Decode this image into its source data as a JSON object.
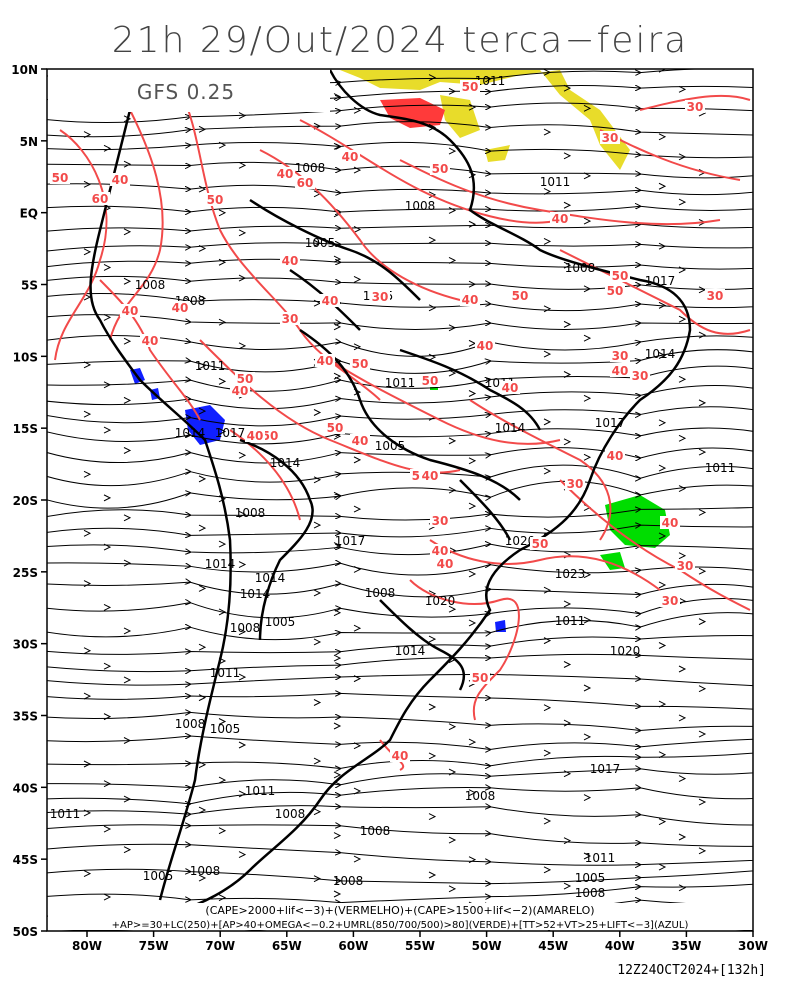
{
  "title": "21h 29/Out/2024 terca−feira",
  "model_label": "GFS 0.25",
  "legend": {
    "line1": "(CAPE>2000+lif<−3)+(VERMELHO)+(CAPE>1500+lif<−2)(AMARELO)",
    "line2": "+AP>=30+LC(250)+[AP>40+OMEGA<−0.2+UMRL(850/700/500)>80](VERDE)+[TT>52+VT>25+LIFT<−3](AZUL)"
  },
  "run_stamp": "12Z24OCT2024+[132h]",
  "lat_labels": [
    "10N",
    "5N",
    "EQ",
    "5S",
    "10S",
    "15S",
    "20S",
    "25S",
    "30S",
    "35S",
    "40S",
    "45S",
    "50S"
  ],
  "lon_labels": [
    "80W",
    "75W",
    "70W",
    "65W",
    "60W",
    "55W",
    "50W",
    "45W",
    "40W",
    "35W",
    "30W"
  ],
  "pressure_labels": [
    "1011",
    "1008",
    "1008",
    "1011",
    "1005",
    "1008",
    "1008",
    "1005",
    "1008",
    "1017",
    "1014",
    "1011",
    "1011",
    "1011",
    "1014",
    "1017",
    "1014",
    "1017",
    "1011",
    "1014",
    "1005",
    "1008",
    "1017",
    "1020",
    "1023",
    "1014",
    "1014",
    "1014",
    "1008",
    "1020",
    "1005",
    "1008",
    "1014",
    "1011",
    "1020",
    "1011",
    "1008",
    "1005",
    "1017",
    "1011",
    "1008"
  ],
  "contour_labels": [
    "50",
    "50",
    "40",
    "60",
    "50",
    "40",
    "60",
    "40",
    "50",
    "40",
    "50",
    "50",
    "40",
    "40",
    "30",
    "40",
    "50",
    "40",
    "40",
    "40",
    "30",
    "40",
    "50",
    "30",
    "40",
    "30",
    "40",
    "40",
    "30",
    "50",
    "40",
    "50",
    "50",
    "50",
    "40",
    "40",
    "50",
    "40",
    "30",
    "40",
    "40",
    "40",
    "30",
    "50",
    "40",
    "30",
    "30",
    "50",
    "40",
    "30",
    "30"
  ],
  "colors": {
    "cape_2000_red": "#ff3a3a",
    "cape_1500_yellow": "#e8dc2a",
    "omega_green": "#00dd00",
    "tt_blue": "#1020ff",
    "contour_red": "#f24a4a",
    "streamlines": "#000000",
    "frame": "#000000"
  }
}
